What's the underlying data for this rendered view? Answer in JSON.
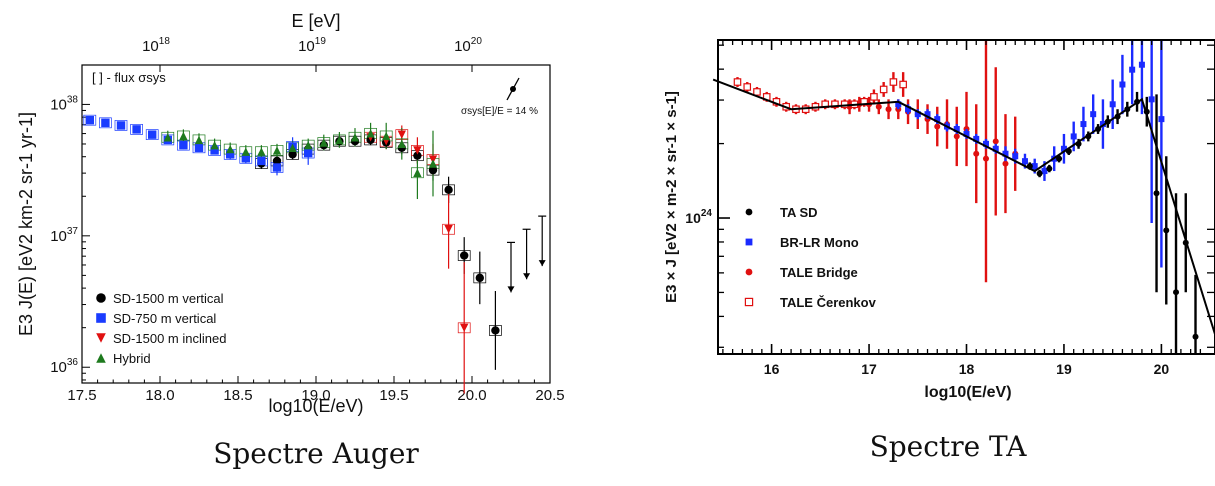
{
  "chart_data": [
    {
      "type": "scatter",
      "caption": "Spectre Auger",
      "xlabel": "log10(E/eV)",
      "ylabel": "E3 J(E) [eV2 km-2 sr-1 yr-1]",
      "top_axis_label": "E [eV]",
      "top_ticks": [
        "10^18",
        "10^19",
        "10^20"
      ],
      "x_ticks": [
        "17.5",
        "18.0",
        "18.5",
        "19.0",
        "19.5",
        "20.0",
        "20.5"
      ],
      "y_ticks": [
        "10^36",
        "10^37",
        "10^38"
      ],
      "xlim": [
        17.5,
        20.5
      ],
      "ylim_log10": [
        35.88,
        38.3
      ],
      "log_y": true,
      "annotation_flux": "[ ] - flux σsys",
      "annotation_energy": "σsys[E]/E = 14 %",
      "legend_position": "bottom-left",
      "series": [
        {
          "name": "SD-1500 m vertical",
          "marker": "circle",
          "color": "#000000",
          "x": [
            18.65,
            18.75,
            18.85,
            18.95,
            19.05,
            19.15,
            19.25,
            19.35,
            19.45,
            19.55,
            19.65,
            19.75,
            19.85,
            19.95,
            20.05,
            20.15
          ],
          "y": [
            37.55,
            37.57,
            37.62,
            37.66,
            37.69,
            37.72,
            37.72,
            37.73,
            37.71,
            37.67,
            37.61,
            37.5,
            37.35,
            36.85,
            36.68,
            36.28
          ],
          "err": [
            0.04,
            0.04,
            0.04,
            0.04,
            0.04,
            0.04,
            0.04,
            0.04,
            0.05,
            0.05,
            0.06,
            0.08,
            0.1,
            0.14,
            0.2,
            0.3
          ]
        },
        {
          "name": "SD-750 m vertical",
          "marker": "square",
          "color": "#1a3cff",
          "x": [
            17.55,
            17.65,
            17.75,
            17.85,
            17.95,
            18.05,
            18.15,
            18.25,
            18.35,
            18.45,
            18.55,
            18.65,
            18.75,
            18.85,
            18.95
          ],
          "y": [
            37.88,
            37.86,
            37.84,
            37.81,
            37.77,
            37.73,
            37.69,
            37.67,
            37.65,
            37.62,
            37.59,
            37.57,
            37.52,
            37.68,
            37.63
          ],
          "err": [
            0.03,
            0.03,
            0.03,
            0.03,
            0.03,
            0.03,
            0.03,
            0.03,
            0.03,
            0.04,
            0.04,
            0.05,
            0.06,
            0.07,
            0.09
          ]
        },
        {
          "name": "SD-1500 m inclined",
          "marker": "triangle-down",
          "color": "#e01010",
          "x": [
            19.35,
            19.45,
            19.55,
            19.65,
            19.75,
            19.85,
            19.95
          ],
          "y": [
            37.75,
            37.72,
            37.77,
            37.65,
            37.58,
            37.05,
            36.3
          ],
          "err": [
            0.05,
            0.06,
            0.07,
            0.1,
            0.12,
            0.3,
            0.5
          ]
        },
        {
          "name": "Hybrid",
          "marker": "triangle-up",
          "color": "#1e7a1e",
          "x": [
            18.05,
            18.15,
            18.25,
            18.35,
            18.45,
            18.55,
            18.65,
            18.75,
            18.85,
            18.95,
            19.05,
            19.15,
            19.25,
            19.35,
            19.45,
            19.55,
            19.65,
            19.75
          ],
          "y": [
            37.75,
            37.76,
            37.73,
            37.69,
            37.66,
            37.64,
            37.64,
            37.65,
            37.67,
            37.69,
            37.71,
            37.73,
            37.75,
            37.78,
            37.76,
            37.7,
            37.48,
            37.55
          ],
          "err": [
            0.05,
            0.05,
            0.05,
            0.05,
            0.05,
            0.05,
            0.05,
            0.05,
            0.05,
            0.05,
            0.06,
            0.06,
            0.07,
            0.08,
            0.1,
            0.12,
            0.2,
            0.25
          ]
        }
      ],
      "upper_limits": {
        "x": [
          20.25,
          20.35,
          20.45
        ],
        "y": [
          36.95,
          37.05,
          37.15
        ]
      }
    },
    {
      "type": "scatter",
      "caption": "Spectre TA",
      "xlabel": "log10(E/eV)",
      "ylabel": "E3 × J [eV2 × m-2 × sr-1 × s-1]",
      "x_ticks": [
        "16",
        "17",
        "18",
        "19",
        "20"
      ],
      "y_ticks": [
        "10^24"
      ],
      "xlim": [
        15.45,
        20.55
      ],
      "ylim_log10": [
        23.45,
        24.72
      ],
      "log_y": true,
      "legend_position": "left",
      "series": [
        {
          "name": "TA SD",
          "marker": "circle",
          "color": "#000000",
          "x": [
            18.65,
            18.75,
            18.85,
            18.95,
            19.05,
            19.15,
            19.25,
            19.35,
            19.45,
            19.55,
            19.65,
            19.75,
            19.85,
            19.95,
            20.05,
            20.15,
            20.25,
            20.35
          ],
          "y": [
            24.21,
            24.18,
            24.2,
            24.24,
            24.27,
            24.3,
            24.33,
            24.36,
            24.39,
            24.41,
            24.44,
            24.47,
            24.43,
            24.1,
            23.95,
            23.7,
            23.9,
            23.52
          ],
          "err": [
            0.015,
            0.015,
            0.015,
            0.015,
            0.015,
            0.02,
            0.02,
            0.02,
            0.025,
            0.03,
            0.03,
            0.04,
            0.06,
            0.4,
            0.3,
            0.4,
            0.2,
            0.25
          ]
        },
        {
          "name": "BR-LR Mono",
          "marker": "square",
          "color": "#1a2aff",
          "x": [
            17.3,
            17.4,
            17.5,
            17.6,
            17.7,
            17.8,
            17.9,
            18.0,
            18.1,
            18.2,
            18.3,
            18.4,
            18.5,
            18.6,
            18.7,
            18.8,
            18.9,
            19.0,
            19.1,
            19.2,
            19.3,
            19.4,
            19.5,
            19.6,
            19.7,
            19.8,
            19.9,
            20.0
          ],
          "y": [
            24.46,
            24.44,
            24.42,
            24.42,
            24.4,
            24.37,
            24.36,
            24.34,
            24.32,
            24.3,
            24.28,
            24.26,
            24.25,
            24.23,
            24.21,
            24.19,
            24.24,
            24.28,
            24.33,
            24.38,
            24.42,
            24.38,
            24.46,
            24.54,
            24.6,
            24.62,
            24.48,
            24.4
          ],
          "err": [
            0.02,
            0.02,
            0.02,
            0.02,
            0.02,
            0.02,
            0.02,
            0.02,
            0.02,
            0.02,
            0.02,
            0.03,
            0.03,
            0.03,
            0.03,
            0.04,
            0.05,
            0.06,
            0.06,
            0.07,
            0.08,
            0.1,
            0.1,
            0.12,
            0.14,
            0.2,
            0.5,
            0.6
          ]
        },
        {
          "name": "TALE Bridge",
          "marker": "circle",
          "color": "#e01010",
          "x": [
            16.8,
            16.9,
            17.0,
            17.1,
            17.2,
            17.3,
            17.4,
            17.5,
            17.6,
            17.7,
            17.8,
            17.9,
            18.0,
            18.1,
            18.2,
            18.3,
            18.4,
            18.5
          ],
          "y": [
            24.45,
            24.46,
            24.46,
            24.45,
            24.44,
            24.44,
            24.43,
            24.42,
            24.4,
            24.37,
            24.38,
            24.33,
            24.36,
            24.26,
            24.24,
            24.31,
            24.22,
            24.26
          ],
          "err": [
            0.03,
            0.03,
            0.03,
            0.03,
            0.04,
            0.04,
            0.05,
            0.06,
            0.06,
            0.08,
            0.1,
            0.12,
            0.15,
            0.2,
            0.5,
            0.3,
            0.2,
            0.15
          ]
        },
        {
          "name": "TALE Čerenkov",
          "marker": "open-square",
          "color": "#e01010",
          "x": [
            15.65,
            15.75,
            15.85,
            15.95,
            16.05,
            16.15,
            16.25,
            16.35,
            16.45,
            16.55,
            16.65,
            16.75,
            16.85,
            16.95,
            17.05,
            17.15,
            17.25,
            17.35
          ],
          "y": [
            24.55,
            24.53,
            24.51,
            24.49,
            24.47,
            24.45,
            24.44,
            24.44,
            24.45,
            24.46,
            24.46,
            24.46,
            24.46,
            24.47,
            24.49,
            24.52,
            24.55,
            24.54
          ],
          "err": [
            0.02,
            0.02,
            0.02,
            0.02,
            0.02,
            0.02,
            0.02,
            0.02,
            0.02,
            0.02,
            0.02,
            0.02,
            0.02,
            0.02,
            0.03,
            0.03,
            0.04,
            0.05
          ]
        }
      ],
      "fit_line": {
        "x": [
          15.4,
          16.2,
          17.3,
          18.7,
          19.8,
          20.55
        ],
        "y": [
          24.56,
          24.44,
          24.47,
          24.19,
          24.48,
          23.53
        ]
      }
    }
  ]
}
